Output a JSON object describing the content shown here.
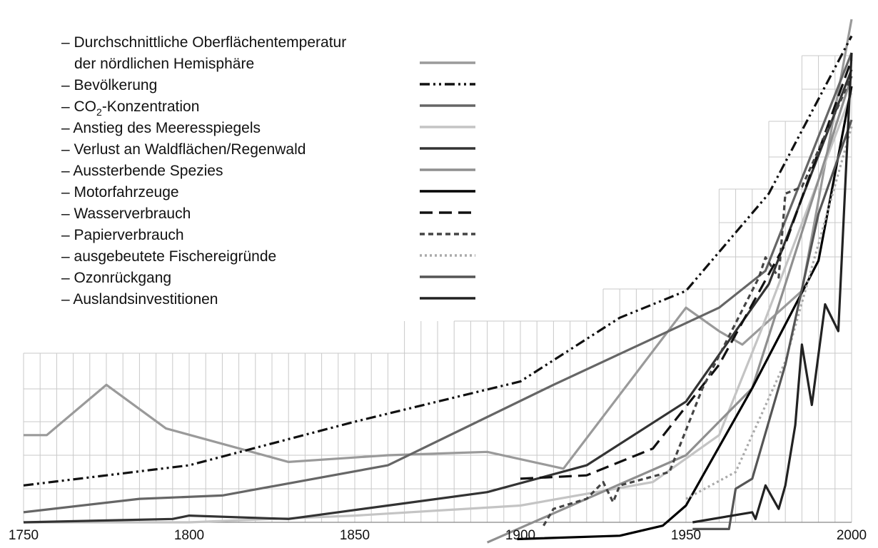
{
  "chart_data": {
    "type": "line",
    "title": "",
    "xlabel": "",
    "ylabel": "",
    "xlim": [
      1750,
      2000
    ],
    "x_ticks": [
      "1750",
      "1800",
      "1850",
      "1900",
      "1950",
      "2000"
    ],
    "grid": "stepped grid, fine vertical lines every 5 years",
    "legend_position": "top-left",
    "legend": [
      {
        "label_line1": "– Durchschnittliche Oberflächentemperatur",
        "label_line2": "der nördlichen Hemisphäre",
        "color": "#9a9a9a",
        "dash": "solid"
      },
      {
        "label_pre": "– Bevölkerung",
        "color": "#111111",
        "dash": "dashdotdot"
      },
      {
        "label_pre": "– CO",
        "label_sub": "2",
        "label_post": "-Konzentration",
        "color": "#666666",
        "dash": "solid"
      },
      {
        "label_pre": "– Anstieg des Meeresspiegels",
        "color": "#c4c4c4",
        "dash": "solid"
      },
      {
        "label_pre": "– Verlust an Waldflächen/Regenwald",
        "color": "#333333",
        "dash": "solid"
      },
      {
        "label_pre": "– Aussterbende Spezies",
        "color": "#8f8f8f",
        "dash": "solid"
      },
      {
        "label_pre": "– Motorfahrzeuge",
        "color": "#000000",
        "dash": "solid"
      },
      {
        "label_pre": "– Wasserverbrauch",
        "color": "#111111",
        "dash": "longdash"
      },
      {
        "label_pre": "– Papierverbrauch",
        "color": "#444444",
        "dash": "shortdash"
      },
      {
        "label_pre": "– ausgebeutete Fischereigründe",
        "color": "#aaaaaa",
        "dash": "dotted"
      },
      {
        "label_pre": "– Ozonrückgang",
        "color": "#555555",
        "dash": "solid"
      },
      {
        "label_pre": "– Auslandsinvestitionen",
        "color": "#222222",
        "dash": "solid"
      }
    ],
    "series": [
      {
        "color": "#9a9a9a",
        "dash": "solid",
        "width": 3.2,
        "points": [
          [
            1750,
            26
          ],
          [
            1757,
            26
          ],
          [
            1775,
            41
          ],
          [
            1793,
            28
          ],
          [
            1830,
            18
          ],
          [
            1860,
            20
          ],
          [
            1890,
            21
          ],
          [
            1913,
            16
          ],
          [
            1950,
            64
          ],
          [
            1960,
            57
          ],
          [
            1967,
            53
          ],
          [
            1985,
            69
          ],
          [
            2000,
            150
          ]
        ]
      },
      {
        "color": "#111111",
        "dash": "dashdotdot",
        "width": 3.2,
        "points": [
          [
            1750,
            11
          ],
          [
            1800,
            17
          ],
          [
            1850,
            30
          ],
          [
            1900,
            42
          ],
          [
            1930,
            61
          ],
          [
            1950,
            69
          ],
          [
            1975,
            98
          ],
          [
            2000,
            145
          ]
        ]
      },
      {
        "color": "#666666",
        "dash": "solid",
        "width": 3.2,
        "points": [
          [
            1750,
            3
          ],
          [
            1785,
            7
          ],
          [
            1810,
            8
          ],
          [
            1860,
            17
          ],
          [
            1910,
            41
          ],
          [
            1960,
            64
          ],
          [
            1974,
            75
          ],
          [
            2000,
            140
          ]
        ]
      },
      {
        "color": "#c4c4c4",
        "dash": "solid",
        "width": 3.2,
        "points": [
          [
            1750,
            0
          ],
          [
            1800,
            0
          ],
          [
            1850,
            2
          ],
          [
            1900,
            5
          ],
          [
            1940,
            12
          ],
          [
            1960,
            26
          ],
          [
            1973,
            58
          ],
          [
            2000,
            128
          ]
        ]
      },
      {
        "color": "#333333",
        "dash": "solid",
        "width": 3.2,
        "points": [
          [
            1750,
            0
          ],
          [
            1795,
            1
          ],
          [
            1800,
            2
          ],
          [
            1830,
            1
          ],
          [
            1860,
            5
          ],
          [
            1890,
            9
          ],
          [
            1920,
            17
          ],
          [
            1950,
            36
          ],
          [
            1975,
            71
          ],
          [
            2000,
            135
          ]
        ]
      },
      {
        "color": "#8f8f8f",
        "dash": "solid",
        "width": 3.2,
        "points": [
          [
            1890,
            -6
          ],
          [
            1950,
            20
          ],
          [
            1970,
            40
          ],
          [
            2000,
            133
          ]
        ]
      },
      {
        "color": "#000000",
        "dash": "solid",
        "width": 3.2,
        "points": [
          [
            1899,
            -5
          ],
          [
            1930,
            -4
          ],
          [
            1943,
            -1
          ],
          [
            1950,
            5
          ],
          [
            1970,
            40
          ],
          [
            1990,
            78
          ],
          [
            2000,
            130
          ]
        ]
      },
      {
        "color": "#111111",
        "dash": "longdash",
        "width": 3.2,
        "points": [
          [
            1900,
            13
          ],
          [
            1920,
            14
          ],
          [
            1940,
            22
          ],
          [
            1960,
            47
          ],
          [
            1980,
            83
          ],
          [
            2000,
            138
          ]
        ]
      },
      {
        "color": "#444444",
        "dash": "shortdash",
        "width": 3.2,
        "points": [
          [
            1907,
            -1
          ],
          [
            1910,
            4
          ],
          [
            1920,
            7
          ],
          [
            1925,
            12
          ],
          [
            1928,
            6
          ],
          [
            1930,
            11
          ],
          [
            1945,
            15
          ],
          [
            1955,
            40
          ],
          [
            1972,
            73
          ],
          [
            1974,
            79
          ],
          [
            1978,
            73
          ],
          [
            1980,
            98
          ],
          [
            1985,
            100
          ],
          [
            2000,
            133
          ]
        ]
      },
      {
        "color": "#aaaaaa",
        "dash": "dotted",
        "width": 3.2,
        "points": [
          [
            1950,
            7
          ],
          [
            1965,
            15
          ],
          [
            1980,
            48
          ],
          [
            2000,
            118
          ]
        ]
      },
      {
        "color": "#555555",
        "dash": "solid",
        "width": 3.2,
        "points": [
          [
            1952,
            -2
          ],
          [
            1963,
            -2
          ],
          [
            1965,
            10
          ],
          [
            1970,
            13
          ],
          [
            1980,
            47
          ],
          [
            1990,
            92
          ],
          [
            2000,
            120
          ]
        ]
      },
      {
        "color": "#222222",
        "dash": "solid",
        "width": 3.2,
        "points": [
          [
            1952,
            0
          ],
          [
            1970,
            3
          ],
          [
            1971,
            1
          ],
          [
            1974,
            11
          ],
          [
            1978,
            4
          ],
          [
            1980,
            11
          ],
          [
            1983,
            29
          ],
          [
            1985,
            53
          ],
          [
            1988,
            35
          ],
          [
            1992,
            65
          ],
          [
            1996,
            57
          ],
          [
            2000,
            140
          ]
        ]
      }
    ]
  }
}
